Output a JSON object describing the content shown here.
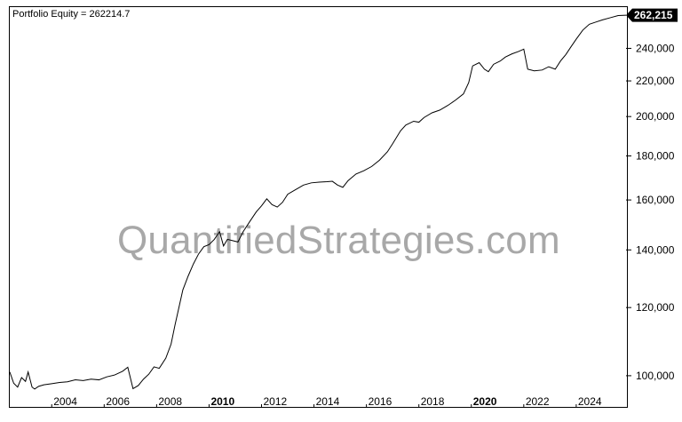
{
  "chart_data": {
    "type": "line",
    "title": "Portfolio Equity = 262214.7",
    "watermark": "QuantifiedStrategies.com",
    "last_value_label": "262,215",
    "y_scale": "log",
    "ylim": [
      92000,
      268000
    ],
    "xlim": [
      2002.4,
      2025.9
    ],
    "y_ticks": [
      {
        "value": 100000,
        "label": "100,000"
      },
      {
        "value": 120000,
        "label": "120,000"
      },
      {
        "value": 140000,
        "label": "140,000"
      },
      {
        "value": 160000,
        "label": "160,000"
      },
      {
        "value": 180000,
        "label": "180,000"
      },
      {
        "value": 200000,
        "label": "200,000"
      },
      {
        "value": 220000,
        "label": "220,000"
      },
      {
        "value": 240000,
        "label": "240,000"
      }
    ],
    "x_ticks": [
      {
        "value": 2004,
        "label": "2004",
        "bold": false
      },
      {
        "value": 2006,
        "label": "2006",
        "bold": false
      },
      {
        "value": 2008,
        "label": "2008",
        "bold": false
      },
      {
        "value": 2010,
        "label": "2010",
        "bold": true
      },
      {
        "value": 2012,
        "label": "2012",
        "bold": false
      },
      {
        "value": 2014,
        "label": "2014",
        "bold": false
      },
      {
        "value": 2016,
        "label": "2016",
        "bold": false
      },
      {
        "value": 2018,
        "label": "2018",
        "bold": false
      },
      {
        "value": 2020,
        "label": "2020",
        "bold": true
      },
      {
        "value": 2022,
        "label": "2022",
        "bold": false
      },
      {
        "value": 2024,
        "label": "2024",
        "bold": false
      }
    ],
    "grid": false,
    "series": [
      {
        "color": "#000000",
        "points": [
          [
            2002.4,
            101000
          ],
          [
            2002.55,
            98000
          ],
          [
            2002.7,
            97000
          ],
          [
            2002.85,
            99500
          ],
          [
            2003.0,
            98500
          ],
          [
            2003.1,
            101000
          ],
          [
            2003.25,
            97000
          ],
          [
            2003.35,
            96500
          ],
          [
            2003.5,
            97200
          ],
          [
            2003.7,
            97600
          ],
          [
            2004.0,
            97900
          ],
          [
            2004.3,
            98200
          ],
          [
            2004.6,
            98400
          ],
          [
            2004.9,
            98900
          ],
          [
            2005.2,
            98700
          ],
          [
            2005.5,
            99100
          ],
          [
            2005.8,
            98900
          ],
          [
            2006.1,
            99700
          ],
          [
            2006.4,
            100200
          ],
          [
            2006.7,
            101200
          ],
          [
            2006.9,
            102300
          ],
          [
            2007.1,
            96600
          ],
          [
            2007.3,
            97400
          ],
          [
            2007.5,
            99100
          ],
          [
            2007.7,
            100400
          ],
          [
            2007.9,
            102400
          ],
          [
            2008.1,
            102000
          ],
          [
            2008.35,
            104800
          ],
          [
            2008.55,
            108800
          ],
          [
            2008.7,
            114500
          ],
          [
            2008.85,
            120000
          ],
          [
            2009.0,
            125800
          ],
          [
            2009.2,
            130500
          ],
          [
            2009.4,
            134800
          ],
          [
            2009.6,
            138500
          ],
          [
            2009.8,
            141200
          ],
          [
            2010.0,
            142000
          ],
          [
            2010.2,
            144000
          ],
          [
            2010.4,
            147000
          ],
          [
            2010.55,
            141500
          ],
          [
            2010.7,
            144000
          ],
          [
            2010.9,
            143500
          ],
          [
            2011.1,
            143000
          ],
          [
            2011.3,
            147000
          ],
          [
            2011.55,
            151000
          ],
          [
            2011.8,
            155000
          ],
          [
            2012.0,
            157500
          ],
          [
            2012.2,
            160500
          ],
          [
            2012.4,
            158000
          ],
          [
            2012.6,
            157000
          ],
          [
            2012.8,
            159000
          ],
          [
            2013.0,
            162500
          ],
          [
            2013.3,
            164500
          ],
          [
            2013.6,
            166500
          ],
          [
            2013.9,
            167500
          ],
          [
            2014.2,
            167800
          ],
          [
            2014.5,
            168000
          ],
          [
            2014.7,
            168200
          ],
          [
            2014.9,
            166500
          ],
          [
            2015.1,
            165500
          ],
          [
            2015.3,
            168500
          ],
          [
            2015.6,
            171500
          ],
          [
            2015.9,
            173000
          ],
          [
            2016.2,
            175000
          ],
          [
            2016.5,
            178000
          ],
          [
            2016.8,
            182000
          ],
          [
            2017.0,
            186000
          ],
          [
            2017.3,
            192500
          ],
          [
            2017.5,
            195500
          ],
          [
            2017.8,
            197500
          ],
          [
            2018.0,
            197000
          ],
          [
            2018.2,
            199500
          ],
          [
            2018.5,
            202000
          ],
          [
            2018.8,
            203500
          ],
          [
            2019.1,
            206000
          ],
          [
            2019.4,
            209000
          ],
          [
            2019.7,
            212500
          ],
          [
            2019.9,
            219000
          ],
          [
            2020.05,
            229000
          ],
          [
            2020.3,
            231000
          ],
          [
            2020.5,
            227000
          ],
          [
            2020.65,
            225500
          ],
          [
            2020.85,
            230000
          ],
          [
            2021.1,
            232000
          ],
          [
            2021.3,
            234500
          ],
          [
            2021.55,
            236500
          ],
          [
            2021.8,
            238000
          ],
          [
            2022.0,
            239500
          ],
          [
            2022.15,
            227000
          ],
          [
            2022.4,
            226000
          ],
          [
            2022.7,
            226500
          ],
          [
            2022.95,
            228500
          ],
          [
            2023.2,
            227000
          ],
          [
            2023.4,
            232000
          ],
          [
            2023.6,
            236000
          ],
          [
            2023.8,
            241000
          ],
          [
            2024.0,
            246000
          ],
          [
            2024.25,
            252000
          ],
          [
            2024.5,
            256000
          ],
          [
            2024.75,
            257500
          ],
          [
            2025.0,
            259000
          ],
          [
            2025.3,
            260500
          ],
          [
            2025.6,
            262000
          ],
          [
            2025.9,
            262215
          ]
        ]
      }
    ]
  }
}
